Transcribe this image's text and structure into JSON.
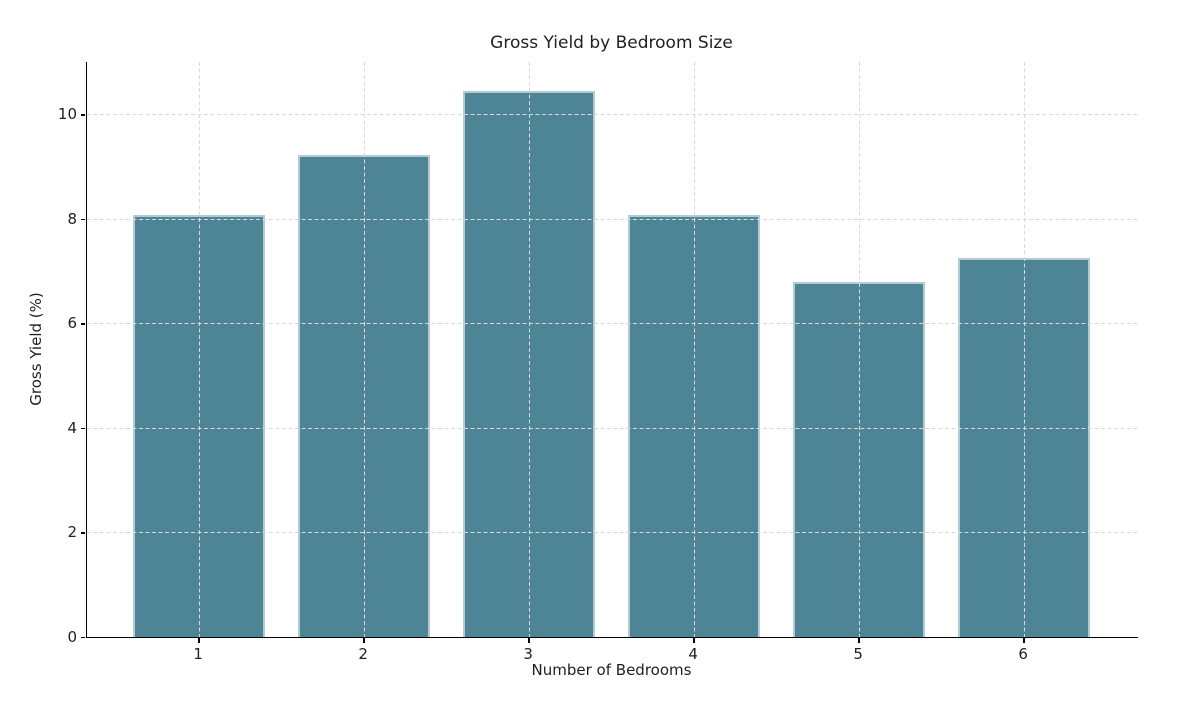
{
  "chart_data": {
    "type": "bar",
    "title": "Gross Yield by Bedroom Size",
    "xlabel": "Number of Bedrooms",
    "ylabel": "Gross Yield (%)",
    "categories": [
      1,
      2,
      3,
      4,
      5,
      6
    ],
    "values": [
      8.08,
      9.22,
      10.45,
      8.07,
      6.8,
      7.26
    ],
    "bar_width_units": 0.8,
    "xlim": [
      0.32,
      6.69
    ],
    "ylim": [
      0,
      11
    ],
    "yticks": [
      0,
      2,
      4,
      6,
      8,
      10
    ],
    "grid": "both-axes, dashed, drawn above bars",
    "legend": "none",
    "colors": {
      "bar_fill": "#4E8596",
      "bar_edge": "#B5CBD3",
      "grid": "#D9D9D9",
      "axis": "#000000",
      "text": "#1F1F1F",
      "background": "#FFFFFF"
    }
  }
}
